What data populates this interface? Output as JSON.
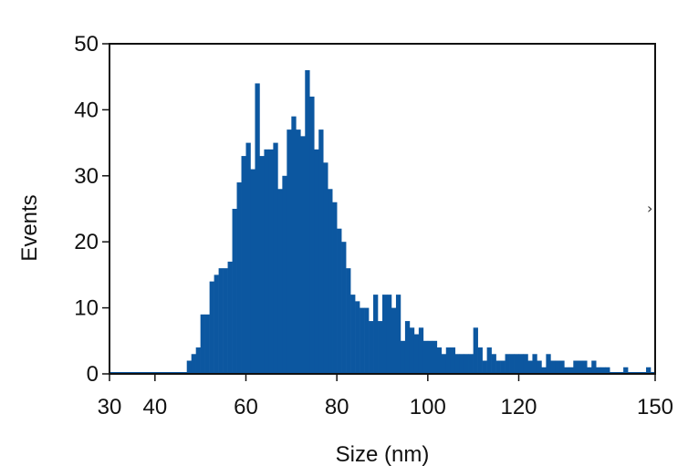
{
  "chart_data": {
    "type": "bar",
    "title": "",
    "xlabel": "Size (nm)",
    "ylabel": "Events",
    "xlim": [
      30,
      150
    ],
    "ylim": [
      0,
      50
    ],
    "x_ticks": [
      30,
      40,
      60,
      80,
      100,
      120,
      150
    ],
    "y_ticks": [
      0,
      10,
      20,
      30,
      40,
      50
    ],
    "bin_width": 1,
    "grid": false,
    "legend": "none",
    "color": "#0c57a0",
    "bins": [
      {
        "x": 47,
        "count": 2
      },
      {
        "x": 48,
        "count": 3
      },
      {
        "x": 49,
        "count": 4
      },
      {
        "x": 50,
        "count": 9
      },
      {
        "x": 51,
        "count": 9
      },
      {
        "x": 52,
        "count": 14
      },
      {
        "x": 53,
        "count": 15
      },
      {
        "x": 54,
        "count": 16
      },
      {
        "x": 55,
        "count": 16
      },
      {
        "x": 56,
        "count": 17
      },
      {
        "x": 57,
        "count": 25
      },
      {
        "x": 58,
        "count": 29
      },
      {
        "x": 59,
        "count": 33
      },
      {
        "x": 60,
        "count": 35
      },
      {
        "x": 61,
        "count": 31
      },
      {
        "x": 62,
        "count": 44
      },
      {
        "x": 63,
        "count": 33
      },
      {
        "x": 64,
        "count": 34
      },
      {
        "x": 65,
        "count": 34
      },
      {
        "x": 66,
        "count": 35
      },
      {
        "x": 67,
        "count": 28
      },
      {
        "x": 68,
        "count": 30
      },
      {
        "x": 69,
        "count": 37
      },
      {
        "x": 70,
        "count": 39
      },
      {
        "x": 71,
        "count": 37
      },
      {
        "x": 72,
        "count": 36
      },
      {
        "x": 73,
        "count": 46
      },
      {
        "x": 74,
        "count": 42
      },
      {
        "x": 75,
        "count": 34
      },
      {
        "x": 76,
        "count": 37
      },
      {
        "x": 77,
        "count": 32
      },
      {
        "x": 78,
        "count": 28
      },
      {
        "x": 79,
        "count": 26
      },
      {
        "x": 80,
        "count": 22
      },
      {
        "x": 81,
        "count": 20
      },
      {
        "x": 82,
        "count": 16
      },
      {
        "x": 83,
        "count": 12
      },
      {
        "x": 84,
        "count": 11
      },
      {
        "x": 85,
        "count": 10
      },
      {
        "x": 86,
        "count": 10
      },
      {
        "x": 87,
        "count": 8
      },
      {
        "x": 88,
        "count": 12
      },
      {
        "x": 89,
        "count": 8
      },
      {
        "x": 90,
        "count": 12
      },
      {
        "x": 91,
        "count": 12
      },
      {
        "x": 92,
        "count": 10
      },
      {
        "x": 93,
        "count": 12
      },
      {
        "x": 94,
        "count": 5
      },
      {
        "x": 95,
        "count": 8
      },
      {
        "x": 96,
        "count": 7
      },
      {
        "x": 97,
        "count": 6
      },
      {
        "x": 98,
        "count": 7
      },
      {
        "x": 99,
        "count": 5
      },
      {
        "x": 100,
        "count": 5
      },
      {
        "x": 101,
        "count": 5
      },
      {
        "x": 102,
        "count": 4
      },
      {
        "x": 103,
        "count": 3
      },
      {
        "x": 104,
        "count": 4
      },
      {
        "x": 105,
        "count": 4
      },
      {
        "x": 106,
        "count": 3
      },
      {
        "x": 107,
        "count": 3
      },
      {
        "x": 108,
        "count": 3
      },
      {
        "x": 109,
        "count": 3
      },
      {
        "x": 110,
        "count": 7
      },
      {
        "x": 111,
        "count": 4
      },
      {
        "x": 112,
        "count": 2
      },
      {
        "x": 113,
        "count": 4
      },
      {
        "x": 114,
        "count": 3
      },
      {
        "x": 115,
        "count": 2
      },
      {
        "x": 116,
        "count": 2
      },
      {
        "x": 117,
        "count": 3
      },
      {
        "x": 118,
        "count": 3
      },
      {
        "x": 119,
        "count": 3
      },
      {
        "x": 120,
        "count": 3
      },
      {
        "x": 121,
        "count": 3
      },
      {
        "x": 122,
        "count": 2
      },
      {
        "x": 123,
        "count": 3
      },
      {
        "x": 124,
        "count": 2
      },
      {
        "x": 125,
        "count": 1
      },
      {
        "x": 126,
        "count": 3
      },
      {
        "x": 127,
        "count": 2
      },
      {
        "x": 128,
        "count": 2
      },
      {
        "x": 129,
        "count": 2
      },
      {
        "x": 130,
        "count": 1
      },
      {
        "x": 131,
        "count": 1
      },
      {
        "x": 132,
        "count": 2
      },
      {
        "x": 133,
        "count": 2
      },
      {
        "x": 134,
        "count": 2
      },
      {
        "x": 135,
        "count": 1
      },
      {
        "x": 136,
        "count": 2
      },
      {
        "x": 137,
        "count": 1
      },
      {
        "x": 138,
        "count": 1
      },
      {
        "x": 139,
        "count": 1
      },
      {
        "x": 143,
        "count": 1
      },
      {
        "x": 148,
        "count": 1
      }
    ]
  }
}
